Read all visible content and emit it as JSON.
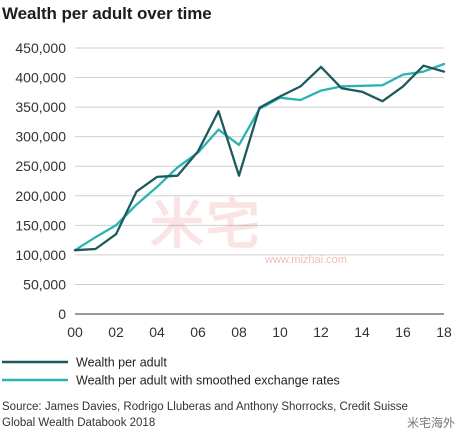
{
  "chart_data": {
    "type": "line",
    "title": "Wealth per adult over time",
    "x": [
      2000,
      2001,
      2002,
      2003,
      2004,
      2005,
      2006,
      2007,
      2008,
      2009,
      2010,
      2011,
      2012,
      2013,
      2014,
      2015,
      2016,
      2017,
      2018
    ],
    "x_tick_labels": [
      "00",
      "02",
      "04",
      "06",
      "08",
      "10",
      "12",
      "14",
      "16",
      "18"
    ],
    "x_tick_values": [
      2000,
      2002,
      2004,
      2006,
      2008,
      2010,
      2012,
      2014,
      2016,
      2018
    ],
    "y_tick_labels": [
      "0",
      "50,000",
      "100,000",
      "150,000",
      "200,000",
      "250,000",
      "300,000",
      "350,000",
      "400,000",
      "450,000"
    ],
    "ylim": [
      0,
      450000
    ],
    "xlim": [
      2000,
      2018
    ],
    "grid": "horizontal",
    "legend_position": "bottom-left",
    "series": [
      {
        "name": "Wealth per adult",
        "color": "#1d5a5e",
        "values": [
          108000,
          110000,
          135000,
          207000,
          232000,
          234000,
          275000,
          343000,
          234000,
          349000,
          368000,
          385000,
          418000,
          382000,
          376000,
          360000,
          385000,
          420000,
          410000
        ]
      },
      {
        "name": "Wealth per adult with smoothed exchange rates",
        "color": "#2ab3b1",
        "values": [
          108000,
          130000,
          150000,
          185000,
          215000,
          248000,
          273000,
          312000,
          286000,
          347000,
          366000,
          362000,
          378000,
          385000,
          386000,
          387000,
          405000,
          410000,
          423000
        ]
      }
    ]
  },
  "source": {
    "line1": "Source: James Davies, Rodrigo Lluberas and Anthony Shorrocks, Credit Suisse",
    "line2": "Global Wealth Databook 2018"
  },
  "watermark": {
    "text": "米宅",
    "url": "www.mizhai.com"
  },
  "corner_brand": "米宅海外"
}
